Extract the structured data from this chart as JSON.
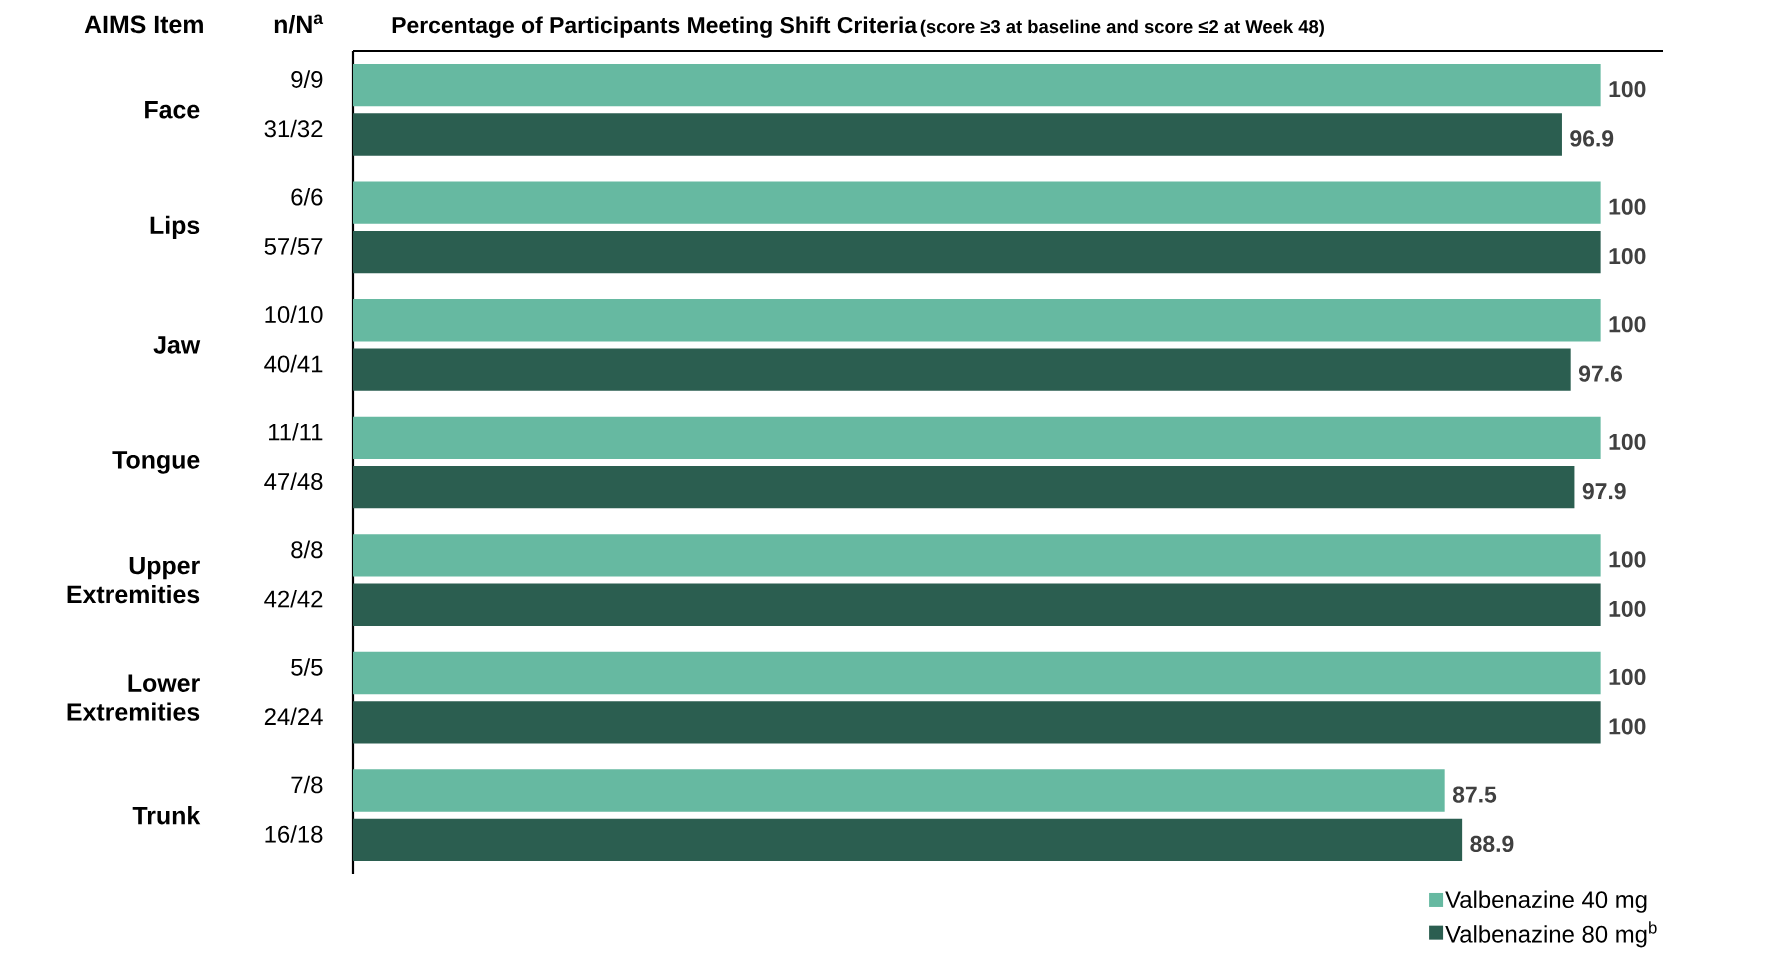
{
  "chart_data": {
    "type": "bar",
    "orientation": "horizontal",
    "title": "Percentage of Participants Meeting Shift Criteria",
    "subtitle": "(score ≥3 at baseline and score ≤2 at Week 48)",
    "ylabel": "AIMS Item",
    "categories": [
      "Face",
      "Lips",
      "Jaw",
      "Tongue",
      "Upper Extremities",
      "Lower Extremities",
      "Trunk"
    ],
    "series": [
      {
        "name": "Valbenazine 40 mg",
        "color": "#66b9a1",
        "values": [
          100,
          100,
          100,
          100,
          100,
          100,
          87.5
        ]
      },
      {
        "name": "Valbenazine 80 mg$^{b}$",
        "color": "#2b5e50",
        "values": [
          96.9,
          100,
          97.6,
          97.9,
          100,
          100,
          88.9
        ]
      }
    ],
    "xlim": [
      0,
      105
    ],
    "tick_labels": "y",
    "data_labels": true,
    "legend": "bottom right",
    "annotations": [
      "n/N$^{a}$",
      "9/9",
      "31/32",
      "6/6",
      "57/57",
      "10/10",
      "40/41",
      "11/11",
      "47/48",
      "8/8",
      "42/42",
      "5/5",
      "24/24",
      "7/8",
      "16/18"
    ]
  }
}
